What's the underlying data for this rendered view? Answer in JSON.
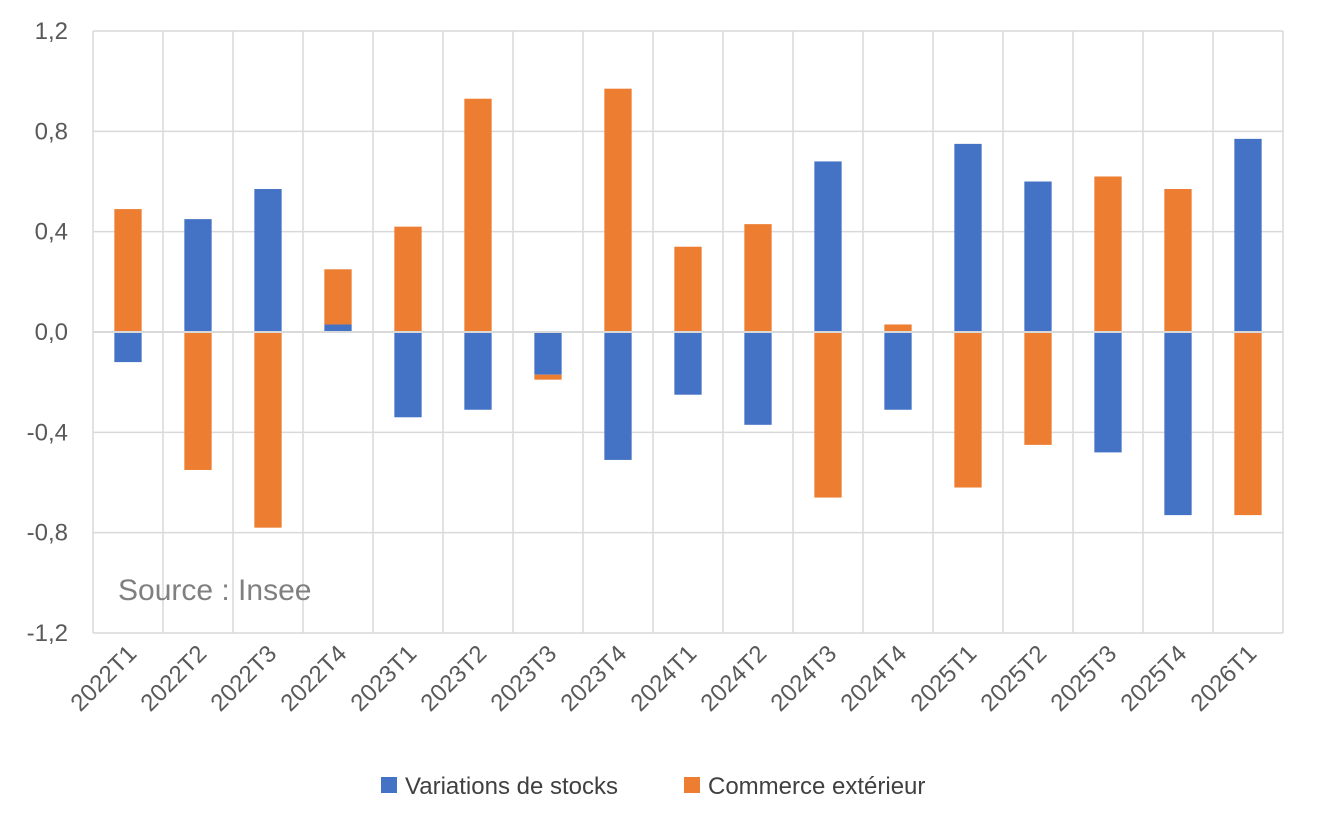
{
  "chart_data": {
    "type": "bar",
    "stacked": true,
    "categories": [
      "2022T1",
      "2022T2",
      "2022T3",
      "2022T4",
      "2023T1",
      "2023T2",
      "2023T3",
      "2023T4",
      "2024T1",
      "2024T2",
      "2024T3",
      "2024T4",
      "2025T1",
      "2025T2",
      "2025T3",
      "2025T4",
      "2026T1"
    ],
    "series": [
      {
        "name": "Variations de stocks",
        "color": "#4472C4",
        "values": [
          -0.12,
          0.45,
          0.57,
          0.03,
          -0.34,
          -0.31,
          -0.17,
          -0.51,
          -0.25,
          -0.37,
          0.68,
          -0.31,
          0.75,
          0.6,
          -0.48,
          -0.73,
          0.77
        ]
      },
      {
        "name": "Commerce extérieur",
        "color": "#ED7D31",
        "values": [
          0.49,
          -0.55,
          -0.78,
          0.22,
          0.42,
          0.93,
          -0.02,
          0.97,
          0.34,
          0.43,
          -0.66,
          0.03,
          -0.62,
          -0.45,
          0.62,
          0.57,
          -0.73
        ]
      }
    ],
    "ylim": [
      -1.2,
      1.2
    ],
    "yticks": [
      "1,2",
      "0,8",
      "0,4",
      "0,0",
      "-0,4",
      "-0,8",
      "-1,2"
    ],
    "ytick_values": [
      1.2,
      0.8,
      0.4,
      0.0,
      -0.4,
      -0.8,
      -1.2
    ],
    "grid": true,
    "legend_position": "bottom",
    "annotation": "Source : Insee",
    "title": "",
    "xlabel": "",
    "ylabel": ""
  }
}
